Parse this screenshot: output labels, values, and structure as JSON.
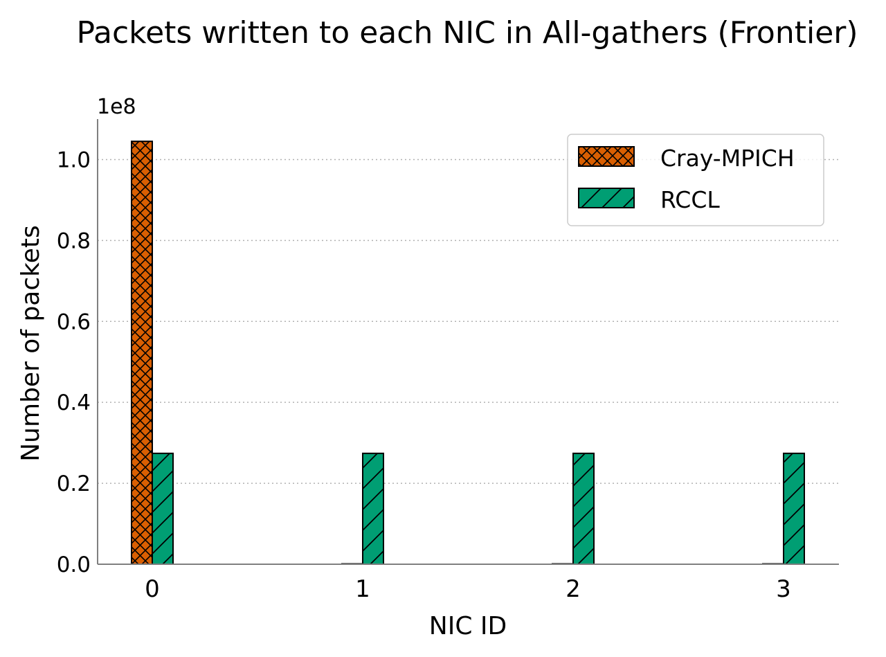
{
  "chart_data": {
    "type": "bar",
    "title": "Packets written to each NIC in All-gathers (Frontier)",
    "xlabel": "NIC ID",
    "ylabel": "Number of packets",
    "offset_label": "1e8",
    "categories": [
      "0",
      "1",
      "2",
      "3"
    ],
    "y_ticks": [
      0.0,
      0.2,
      0.4,
      0.6,
      0.8,
      1.0
    ],
    "y_tick_labels": [
      "0.0",
      "0.2",
      "0.4",
      "0.6",
      "0.8",
      "1.0"
    ],
    "ylim": [
      0,
      1.1
    ],
    "grid": "y-dotted",
    "legend_position": "top-right",
    "series": [
      {
        "name": "Cray-MPICH",
        "color": "#d95f02",
        "hatch": "crosshatch",
        "values": [
          1.045,
          0.001,
          0.001,
          0.001
        ]
      },
      {
        "name": "RCCL",
        "color": "#009e73",
        "hatch": "diagonal",
        "values": [
          0.274,
          0.274,
          0.274,
          0.274
        ]
      }
    ]
  }
}
